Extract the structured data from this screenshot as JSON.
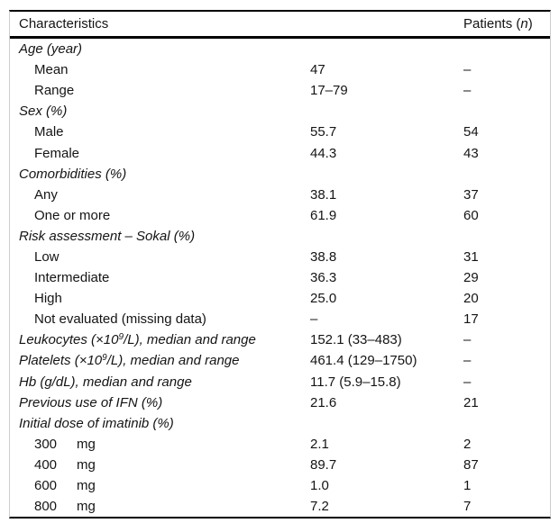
{
  "colors": {
    "background": "#ffffff",
    "text": "#141414",
    "rule": "#000000",
    "frame_edge": "#cdcdcd"
  },
  "table": {
    "header": {
      "characteristics": "Characteristics",
      "patients_prefix": "Patients (",
      "patients_n": "n",
      "patients_suffix": ")"
    },
    "rows": [
      {
        "italic": true,
        "indent": false,
        "label": [
          {
            "text": "Age (year)"
          }
        ],
        "value": "",
        "patients": ""
      },
      {
        "italic": false,
        "indent": true,
        "label": [
          {
            "text": "Mean"
          }
        ],
        "value": "47",
        "patients": "–"
      },
      {
        "italic": false,
        "indent": true,
        "label": [
          {
            "text": "Range"
          }
        ],
        "value": "17–79",
        "patients": "–"
      },
      {
        "italic": true,
        "indent": false,
        "label": [
          {
            "text": "Sex (%)"
          }
        ],
        "value": "",
        "patients": ""
      },
      {
        "italic": false,
        "indent": true,
        "label": [
          {
            "text": "Male"
          }
        ],
        "value": "55.7",
        "patients": "54"
      },
      {
        "italic": false,
        "indent": true,
        "label": [
          {
            "text": "Female"
          }
        ],
        "value": "44.3",
        "patients": "43"
      },
      {
        "italic": true,
        "indent": false,
        "label": [
          {
            "text": "Comorbidities (%)"
          }
        ],
        "value": "",
        "patients": ""
      },
      {
        "italic": false,
        "indent": true,
        "label": [
          {
            "text": "Any"
          }
        ],
        "value": "38.1",
        "patients": "37"
      },
      {
        "italic": false,
        "indent": true,
        "label": [
          {
            "text": "One or more"
          }
        ],
        "value": "61.9",
        "patients": "60"
      },
      {
        "italic": true,
        "indent": false,
        "label": [
          {
            "text": "Risk assessment – Sokal (%)"
          }
        ],
        "value": "",
        "patients": ""
      },
      {
        "italic": false,
        "indent": true,
        "label": [
          {
            "text": "Low"
          }
        ],
        "value": "38.8",
        "patients": "31"
      },
      {
        "italic": false,
        "indent": true,
        "label": [
          {
            "text": "Intermediate"
          }
        ],
        "value": "36.3",
        "patients": "29"
      },
      {
        "italic": false,
        "indent": true,
        "label": [
          {
            "text": "High"
          }
        ],
        "value": "25.0",
        "patients": "20"
      },
      {
        "italic": false,
        "indent": true,
        "label": [
          {
            "text": "Not evaluated (missing data)"
          }
        ],
        "value": "–",
        "patients": "17"
      },
      {
        "italic": true,
        "indent": false,
        "label": [
          {
            "text": "Leukocytes (×10"
          },
          {
            "text": "9",
            "style": "sup"
          },
          {
            "text": "/L), median and range"
          }
        ],
        "value": "152.1 (33–483)",
        "patients": "–"
      },
      {
        "italic": true,
        "indent": false,
        "label": [
          {
            "text": "Platelets (×10"
          },
          {
            "text": "9",
            "style": "sup"
          },
          {
            "text": "/L), median and range"
          }
        ],
        "value": "461.4 (129–1750)",
        "patients": "–"
      },
      {
        "italic": true,
        "indent": false,
        "label": [
          {
            "text": "Hb (g/dL), median and range"
          }
        ],
        "value": "11.7 (5.9–15.8)",
        "patients": "–"
      },
      {
        "italic": true,
        "indent": false,
        "label": [
          {
            "text": "Previous use of IFN (%)"
          }
        ],
        "value": "21.6",
        "patients": "21"
      },
      {
        "italic": true,
        "indent": false,
        "label": [
          {
            "text": "Initial dose of imatinib (%)"
          }
        ],
        "value": "",
        "patients": ""
      },
      {
        "italic": false,
        "indent": true,
        "label": [
          {
            "text": "300",
            "style": "num"
          },
          {
            "text": "mg"
          }
        ],
        "value": "2.1",
        "patients": "2"
      },
      {
        "italic": false,
        "indent": true,
        "label": [
          {
            "text": "400",
            "style": "num"
          },
          {
            "text": "mg"
          }
        ],
        "value": "89.7",
        "patients": "87"
      },
      {
        "italic": false,
        "indent": true,
        "label": [
          {
            "text": "600",
            "style": "num"
          },
          {
            "text": "mg"
          }
        ],
        "value": "1.0",
        "patients": "1"
      },
      {
        "italic": false,
        "indent": true,
        "label": [
          {
            "text": "800",
            "style": "num"
          },
          {
            "text": "mg"
          }
        ],
        "value": "7.2",
        "patients": "7"
      }
    ]
  }
}
